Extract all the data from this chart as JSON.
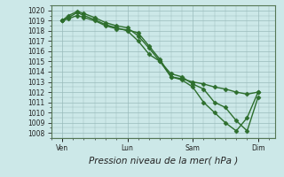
{
  "xlabel": "Pression niveau de la mer( hPa )",
  "ylim": [
    1007.5,
    1020.5
  ],
  "yticks": [
    1008,
    1009,
    1010,
    1011,
    1012,
    1013,
    1014,
    1015,
    1016,
    1017,
    1018,
    1019,
    1020
  ],
  "bg_color": "#cce8e8",
  "grid_color": "#99bbbb",
  "line_color": "#2d6e2d",
  "xtick_labels": [
    "Ven",
    "Lun",
    "Sam",
    "Dim"
  ],
  "xtick_positions": [
    1,
    4,
    7,
    10
  ],
  "xlim": [
    0.5,
    10.8
  ],
  "line1_x": [
    1,
    1.3,
    1.7,
    2.0,
    2.5,
    3.0,
    3.5,
    4.0,
    4.5,
    5.0,
    5.5,
    6.0,
    6.5,
    7.0,
    7.5,
    8.0,
    8.5,
    9.0,
    9.5,
    10.0
  ],
  "line1_y": [
    1019,
    1019.2,
    1019.5,
    1019.3,
    1019.0,
    1018.5,
    1018.2,
    1018.1,
    1017.8,
    1016.5,
    1015.2,
    1013.5,
    1013.3,
    1013.0,
    1012.8,
    1012.5,
    1012.3,
    1012.0,
    1011.8,
    1012.0
  ],
  "line2_x": [
    1,
    1.3,
    1.7,
    2.0,
    2.5,
    3.0,
    3.5,
    4.0,
    4.5,
    5.0,
    5.5,
    6.0,
    6.5,
    7.0,
    7.5,
    8.0,
    8.5,
    9.0,
    9.5,
    10.0
  ],
  "line2_y": [
    1019,
    1019.5,
    1019.9,
    1019.7,
    1019.3,
    1018.8,
    1018.5,
    1018.3,
    1017.5,
    1016.3,
    1015.0,
    1013.8,
    1013.5,
    1012.8,
    1012.3,
    1011.0,
    1010.5,
    1009.2,
    1008.2,
    1011.5
  ],
  "line3_x": [
    1,
    1.3,
    1.7,
    2.0,
    2.5,
    3.0,
    3.5,
    4.0,
    4.5,
    5.0,
    5.5,
    6.0,
    6.5,
    7.0,
    7.5,
    8.0,
    8.5,
    9.0,
    9.5,
    10.0
  ],
  "line3_y": [
    1019,
    1019.3,
    1019.8,
    1019.5,
    1019.1,
    1018.6,
    1018.3,
    1018.0,
    1017.0,
    1015.7,
    1015.0,
    1013.5,
    1013.2,
    1012.5,
    1011.0,
    1010.0,
    1009.0,
    1008.2,
    1009.5,
    1012.0
  ],
  "marker": "D",
  "markersize": 2.5,
  "linewidth": 1.0,
  "tick_fontsize": 5.5,
  "xlabel_fontsize": 7.5
}
